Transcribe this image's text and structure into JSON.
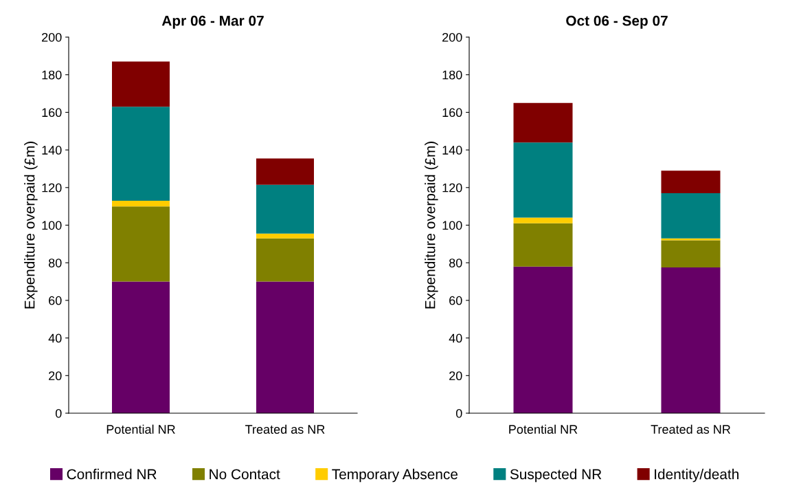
{
  "chart_data": [
    {
      "type": "bar",
      "title": "Apr 06 - Mar 07",
      "ylabel": "Expenditure overpaid (£m)",
      "categories": [
        "Potential NR",
        "Treated as NR"
      ],
      "stacked": true,
      "ylim": [
        0,
        200
      ],
      "yticks": [
        0,
        20,
        40,
        60,
        80,
        100,
        120,
        140,
        160,
        180,
        200
      ],
      "grid": false,
      "legend": "bottom",
      "series": [
        {
          "name": "Confirmed NR",
          "color": "#660066",
          "values": [
            70,
            70
          ]
        },
        {
          "name": "No Contact",
          "color": "#808000",
          "values": [
            40,
            23
          ]
        },
        {
          "name": "Temporary Absence",
          "color": "#ffcc00",
          "values": [
            3,
            2.5
          ]
        },
        {
          "name": "Suspected NR",
          "color": "#008080",
          "values": [
            50,
            26
          ]
        },
        {
          "name": "Identity/death",
          "color": "#800000",
          "values": [
            24,
            14
          ]
        }
      ]
    },
    {
      "type": "bar",
      "title": "Oct 06 - Sep 07",
      "ylabel": "Expenditure overpaid (£m)",
      "categories": [
        "Potential NR",
        "Treated as NR"
      ],
      "stacked": true,
      "ylim": [
        0,
        200
      ],
      "yticks": [
        0,
        20,
        40,
        60,
        80,
        100,
        120,
        140,
        160,
        180,
        200
      ],
      "grid": false,
      "series": [
        {
          "color": "#660066",
          "values": [
            78,
            77.5
          ]
        },
        {
          "color": "#808000",
          "values": [
            23,
            14.5
          ]
        },
        {
          "color": "#ffcc00",
          "values": [
            3,
            1
          ]
        },
        {
          "color": "#008080",
          "values": [
            40,
            24
          ]
        },
        {
          "color": "#800000",
          "values": [
            21,
            12
          ]
        }
      ]
    }
  ]
}
